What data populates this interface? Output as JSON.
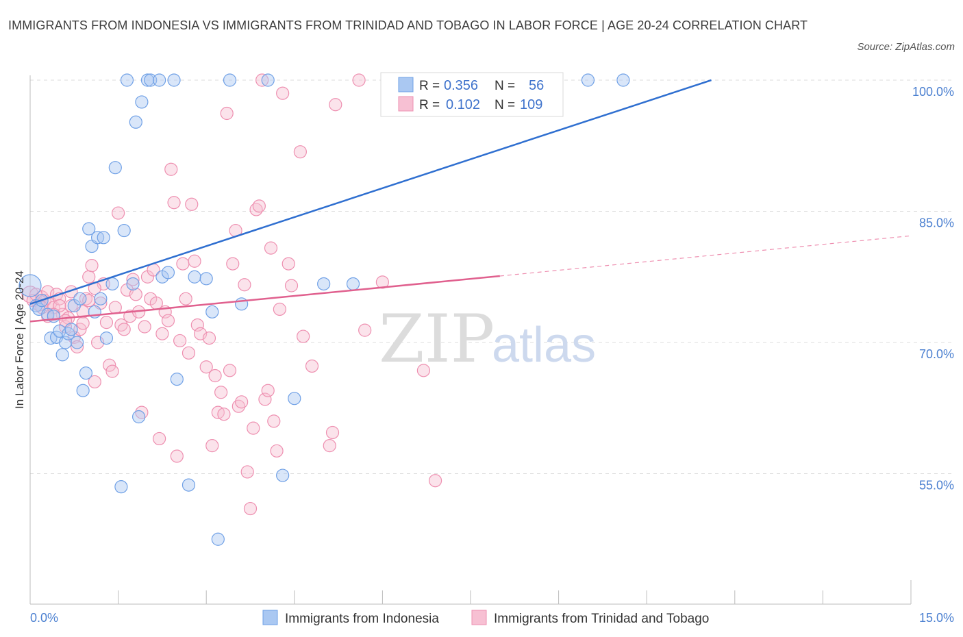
{
  "title": "IMMIGRANTS FROM INDONESIA VS IMMIGRANTS FROM TRINIDAD AND TOBAGO IN LABOR FORCE | AGE 20-24 CORRELATION CHART",
  "source": "Source: ZipAtlas.com",
  "watermark": {
    "zip": "ZIP",
    "atlas": "atlas"
  },
  "colors": {
    "blue": "#6fa0e6",
    "blue_fill": "#aac8f2",
    "blue_line": "#2f6fd0",
    "pink": "#ee8fb0",
    "pink_fill": "#f7c0d3",
    "pink_line": "#e0608e",
    "tick_text": "#4a7fd0",
    "grid": "#dddddd"
  },
  "legend": {
    "rows": [
      {
        "r_label": "R =",
        "r_value": "0.356",
        "n_label": "N =",
        "n_value": "56"
      },
      {
        "r_label": "R =",
        "r_value": "0.102",
        "n_label": "N =",
        "n_value": "109"
      }
    ]
  },
  "bottom_legend": [
    "Immigrants from Indonesia",
    "Immigrants from Trinidad and Tobago"
  ],
  "chart_data": {
    "type": "scatter",
    "xlabel": "",
    "ylabel": "In Labor Force | Age 20-24",
    "xlim": [
      0.0,
      15.0
    ],
    "ylim": [
      40.0,
      100.0
    ],
    "x_tick_labels": [
      "0.0%",
      "15.0%"
    ],
    "y_ticks": [
      55.0,
      70.0,
      85.0,
      100.0
    ],
    "y_tick_labels": [
      "55.0%",
      "70.0%",
      "85.0%",
      "100.0%"
    ],
    "grid": true,
    "legend_placement": "top-center",
    "series": [
      {
        "name": "Immigrants from Indonesia",
        "color": "#6fa0e6",
        "trend": {
          "x": [
            0.0,
            11.6
          ],
          "y": [
            74.4,
            100.0
          ]
        },
        "points": [
          {
            "x": 0.0,
            "y": 76.5,
            "r": 16
          },
          {
            "x": 0.1,
            "y": 74.2
          },
          {
            "x": 0.15,
            "y": 73.8
          },
          {
            "x": 0.2,
            "y": 74.8
          },
          {
            "x": 0.3,
            "y": 73.2
          },
          {
            "x": 0.35,
            "y": 70.5
          },
          {
            "x": 0.4,
            "y": 73.0
          },
          {
            "x": 0.45,
            "y": 70.6
          },
          {
            "x": 0.5,
            "y": 71.3
          },
          {
            "x": 0.55,
            "y": 68.6
          },
          {
            "x": 0.6,
            "y": 70.0
          },
          {
            "x": 0.65,
            "y": 71.0
          },
          {
            "x": 0.7,
            "y": 71.5
          },
          {
            "x": 0.75,
            "y": 74.2
          },
          {
            "x": 0.8,
            "y": 70.0
          },
          {
            "x": 0.85,
            "y": 75.0
          },
          {
            "x": 0.9,
            "y": 64.5
          },
          {
            "x": 0.95,
            "y": 66.5
          },
          {
            "x": 1.0,
            "y": 83.0
          },
          {
            "x": 1.05,
            "y": 81.0
          },
          {
            "x": 1.1,
            "y": 73.5
          },
          {
            "x": 1.15,
            "y": 82.0
          },
          {
            "x": 1.2,
            "y": 75.0
          },
          {
            "x": 1.25,
            "y": 82.0
          },
          {
            "x": 1.3,
            "y": 70.5
          },
          {
            "x": 1.4,
            "y": 76.7
          },
          {
            "x": 1.45,
            "y": 90.0
          },
          {
            "x": 1.55,
            "y": 53.5
          },
          {
            "x": 1.6,
            "y": 82.8
          },
          {
            "x": 1.65,
            "y": 100.0
          },
          {
            "x": 1.75,
            "y": 76.7
          },
          {
            "x": 1.8,
            "y": 95.2
          },
          {
            "x": 1.85,
            "y": 61.5
          },
          {
            "x": 1.9,
            "y": 97.5
          },
          {
            "x": 2.0,
            "y": 100.0
          },
          {
            "x": 2.05,
            "y": 100.0
          },
          {
            "x": 2.2,
            "y": 100.0
          },
          {
            "x": 2.25,
            "y": 77.5
          },
          {
            "x": 2.35,
            "y": 78.0
          },
          {
            "x": 2.45,
            "y": 100.0
          },
          {
            "x": 2.5,
            "y": 65.8
          },
          {
            "x": 2.7,
            "y": 53.7
          },
          {
            "x": 2.8,
            "y": 77.5
          },
          {
            "x": 3.0,
            "y": 77.3
          },
          {
            "x": 3.1,
            "y": 73.5
          },
          {
            "x": 3.2,
            "y": 47.5
          },
          {
            "x": 3.4,
            "y": 100.0
          },
          {
            "x": 3.6,
            "y": 74.4
          },
          {
            "x": 4.05,
            "y": 100.0
          },
          {
            "x": 4.3,
            "y": 54.8
          },
          {
            "x": 4.5,
            "y": 63.6
          },
          {
            "x": 5.0,
            "y": 76.7
          },
          {
            "x": 5.5,
            "y": 76.7
          },
          {
            "x": 6.2,
            "y": 100.0
          },
          {
            "x": 9.5,
            "y": 100.0
          },
          {
            "x": 10.1,
            "y": 100.0
          }
        ]
      },
      {
        "name": "Immigrants from Trinidad and Tobago",
        "color": "#ee8fb0",
        "trend": {
          "x": [
            0.0,
            8.0
          ],
          "y": [
            72.4,
            77.6
          ]
        },
        "trend_extension": {
          "x": [
            8.0,
            15.0
          ],
          "y": [
            77.6,
            82.2
          ]
        },
        "points": [
          {
            "x": 0.0,
            "y": 75.5,
            "r": 12
          },
          {
            "x": 0.05,
            "y": 74.8
          },
          {
            "x": 0.1,
            "y": 75.5
          },
          {
            "x": 0.15,
            "y": 74.3
          },
          {
            "x": 0.2,
            "y": 75.2
          },
          {
            "x": 0.25,
            "y": 74.8
          },
          {
            "x": 0.3,
            "y": 75.8
          },
          {
            "x": 0.35,
            "y": 74.5
          },
          {
            "x": 0.4,
            "y": 74.0
          },
          {
            "x": 0.45,
            "y": 75.5
          },
          {
            "x": 0.5,
            "y": 75.0
          },
          {
            "x": 0.55,
            "y": 73.2
          },
          {
            "x": 0.6,
            "y": 71.8
          },
          {
            "x": 0.65,
            "y": 72.8
          },
          {
            "x": 0.7,
            "y": 74.2
          },
          {
            "x": 0.75,
            "y": 70.6
          },
          {
            "x": 0.8,
            "y": 69.5
          },
          {
            "x": 0.85,
            "y": 71.5
          },
          {
            "x": 0.9,
            "y": 73.5
          },
          {
            "x": 0.95,
            "y": 75.0
          },
          {
            "x": 1.0,
            "y": 77.5
          },
          {
            "x": 1.05,
            "y": 78.8
          },
          {
            "x": 1.1,
            "y": 65.5
          },
          {
            "x": 1.15,
            "y": 70.0
          },
          {
            "x": 1.2,
            "y": 74.5
          },
          {
            "x": 1.25,
            "y": 76.7
          },
          {
            "x": 1.3,
            "y": 72.3
          },
          {
            "x": 1.35,
            "y": 67.4
          },
          {
            "x": 1.4,
            "y": 66.7
          },
          {
            "x": 1.45,
            "y": 74.0
          },
          {
            "x": 1.5,
            "y": 84.8
          },
          {
            "x": 1.55,
            "y": 72.0
          },
          {
            "x": 1.6,
            "y": 71.5
          },
          {
            "x": 1.65,
            "y": 76.0
          },
          {
            "x": 1.7,
            "y": 73.0
          },
          {
            "x": 1.75,
            "y": 77.2
          },
          {
            "x": 1.8,
            "y": 75.5
          },
          {
            "x": 1.85,
            "y": 73.5
          },
          {
            "x": 1.9,
            "y": 62.0
          },
          {
            "x": 1.95,
            "y": 71.8
          },
          {
            "x": 2.0,
            "y": 77.5
          },
          {
            "x": 2.05,
            "y": 75.0
          },
          {
            "x": 2.1,
            "y": 78.3
          },
          {
            "x": 2.15,
            "y": 74.5
          },
          {
            "x": 2.2,
            "y": 59.0
          },
          {
            "x": 2.25,
            "y": 71.0
          },
          {
            "x": 2.3,
            "y": 73.5
          },
          {
            "x": 2.35,
            "y": 72.5
          },
          {
            "x": 2.4,
            "y": 89.8
          },
          {
            "x": 2.45,
            "y": 86.0
          },
          {
            "x": 2.5,
            "y": 57.0
          },
          {
            "x": 2.55,
            "y": 70.2
          },
          {
            "x": 2.6,
            "y": 79.0
          },
          {
            "x": 2.65,
            "y": 75.0
          },
          {
            "x": 2.7,
            "y": 68.8
          },
          {
            "x": 2.75,
            "y": 85.8
          },
          {
            "x": 2.8,
            "y": 79.3
          },
          {
            "x": 2.85,
            "y": 72.0
          },
          {
            "x": 2.9,
            "y": 71.0
          },
          {
            "x": 3.0,
            "y": 67.2
          },
          {
            "x": 3.05,
            "y": 70.5
          },
          {
            "x": 3.1,
            "y": 58.2
          },
          {
            "x": 3.15,
            "y": 66.2
          },
          {
            "x": 3.2,
            "y": 62.0
          },
          {
            "x": 3.25,
            "y": 64.3
          },
          {
            "x": 3.3,
            "y": 61.8
          },
          {
            "x": 3.35,
            "y": 96.2
          },
          {
            "x": 3.4,
            "y": 66.8
          },
          {
            "x": 3.45,
            "y": 79.0
          },
          {
            "x": 3.5,
            "y": 82.8
          },
          {
            "x": 3.55,
            "y": 62.7
          },
          {
            "x": 3.6,
            "y": 63.2
          },
          {
            "x": 3.65,
            "y": 76.6
          },
          {
            "x": 3.7,
            "y": 55.2
          },
          {
            "x": 3.75,
            "y": 51.0
          },
          {
            "x": 3.8,
            "y": 60.2
          },
          {
            "x": 3.85,
            "y": 85.2
          },
          {
            "x": 3.9,
            "y": 85.6
          },
          {
            "x": 3.95,
            "y": 100.0
          },
          {
            "x": 4.0,
            "y": 63.5
          },
          {
            "x": 4.05,
            "y": 64.5
          },
          {
            "x": 4.1,
            "y": 80.8
          },
          {
            "x": 4.15,
            "y": 61.0
          },
          {
            "x": 4.2,
            "y": 57.6
          },
          {
            "x": 4.25,
            "y": 73.8
          },
          {
            "x": 4.3,
            "y": 98.5
          },
          {
            "x": 4.4,
            "y": 79.0
          },
          {
            "x": 4.45,
            "y": 76.5
          },
          {
            "x": 4.6,
            "y": 91.8
          },
          {
            "x": 4.65,
            "y": 70.7
          },
          {
            "x": 4.8,
            "y": 67.3
          },
          {
            "x": 5.1,
            "y": 58.2
          },
          {
            "x": 5.15,
            "y": 59.7
          },
          {
            "x": 5.2,
            "y": 97.2
          },
          {
            "x": 5.6,
            "y": 100.0
          },
          {
            "x": 5.7,
            "y": 71.4
          },
          {
            "x": 6.0,
            "y": 76.9
          },
          {
            "x": 6.3,
            "y": 100.0
          },
          {
            "x": 6.7,
            "y": 66.8
          },
          {
            "x": 6.9,
            "y": 54.2
          },
          {
            "x": 0.3,
            "y": 73.0
          },
          {
            "x": 0.5,
            "y": 74.2
          },
          {
            "x": 0.7,
            "y": 75.8
          },
          {
            "x": 0.9,
            "y": 72.2
          },
          {
            "x": 1.1,
            "y": 76.2
          },
          {
            "x": 0.2,
            "y": 74.0
          },
          {
            "x": 0.4,
            "y": 73.2
          },
          {
            "x": 0.6,
            "y": 72.5
          },
          {
            "x": 1.0,
            "y": 74.8
          }
        ]
      }
    ]
  }
}
